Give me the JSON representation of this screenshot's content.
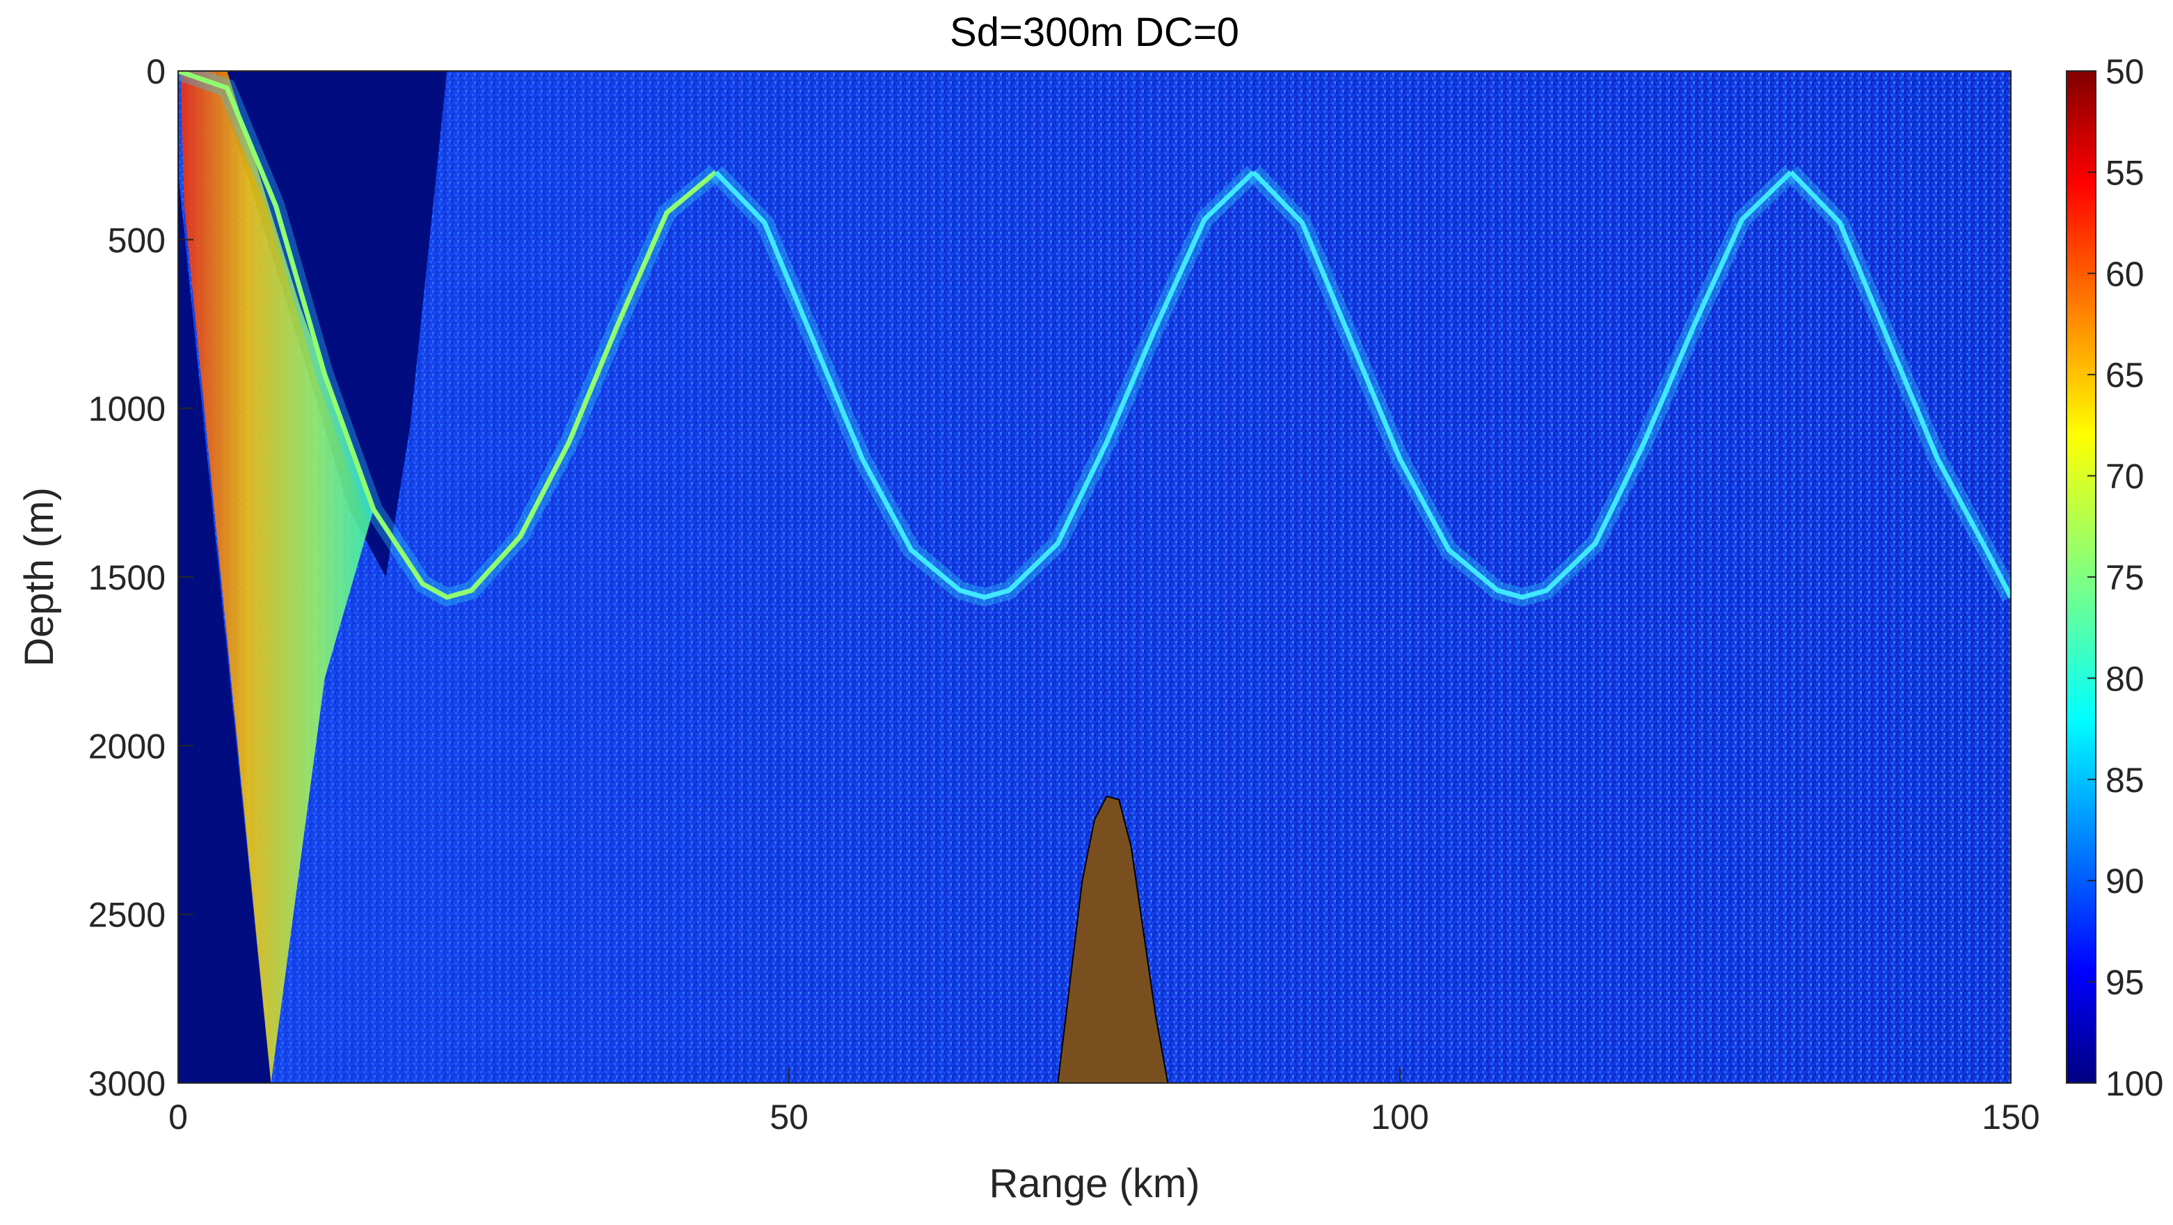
{
  "chart_data": {
    "type": "heatmap",
    "title": "Sd=300m   DC=0",
    "xlabel": "Range (km)",
    "ylabel": "Depth (m)",
    "xlim": [
      0,
      150
    ],
    "ylim": [
      0,
      3000
    ],
    "y_reversed": true,
    "x_ticks": [
      "0",
      "50",
      "100",
      "150"
    ],
    "x_tick_values": [
      0,
      50,
      100,
      150
    ],
    "y_ticks": [
      "0",
      "500",
      "1000",
      "1500",
      "2000",
      "2500",
      "3000"
    ],
    "y_tick_values": [
      0,
      500,
      1000,
      1500,
      2000,
      2500,
      3000
    ],
    "colorbar": {
      "range": [
        50,
        100
      ],
      "reversed": true,
      "colormap": "jet",
      "ticks": [
        "50",
        "55",
        "60",
        "65",
        "70",
        "75",
        "80",
        "85",
        "90",
        "95",
        "100"
      ],
      "tick_values": [
        50,
        55,
        60,
        65,
        70,
        75,
        80,
        85,
        90,
        95,
        100
      ]
    },
    "caustics": [
      {
        "x": [
          0,
          4,
          8,
          12,
          16,
          20,
          22,
          24,
          28,
          32,
          36,
          40,
          44
        ],
        "y": [
          0,
          50,
          400,
          900,
          1300,
          1520,
          1560,
          1540,
          1380,
          1100,
          750,
          420,
          300
        ]
      },
      {
        "x": [
          44,
          48,
          52,
          56,
          60,
          64,
          66,
          68,
          72,
          76,
          80,
          84,
          88
        ],
        "y": [
          300,
          450,
          800,
          1150,
          1420,
          1540,
          1560,
          1540,
          1400,
          1100,
          760,
          440,
          300
        ]
      },
      {
        "x": [
          88,
          92,
          96,
          100,
          104,
          108,
          110,
          112,
          116,
          120,
          124,
          128,
          132
        ],
        "y": [
          300,
          450,
          800,
          1150,
          1420,
          1540,
          1560,
          1540,
          1400,
          1100,
          760,
          440,
          300
        ]
      },
      {
        "x": [
          132,
          136,
          140,
          144,
          148,
          150
        ],
        "y": [
          300,
          450,
          800,
          1150,
          1420,
          1560
        ]
      }
    ],
    "seamount": {
      "color": "#7a4f1f",
      "x": [
        72,
        73,
        74,
        75,
        76,
        77,
        78,
        79,
        80,
        81
      ],
      "y": [
        3000,
        2700,
        2400,
        2220,
        2150,
        2160,
        2300,
        2550,
        2800,
        3000
      ]
    },
    "background_color": "#1133dd",
    "shadow_color": "#000c80"
  }
}
